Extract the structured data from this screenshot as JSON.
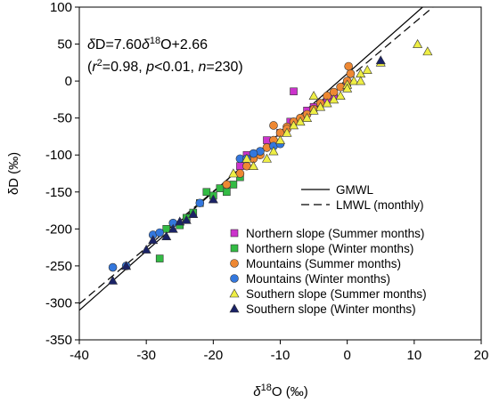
{
  "chart_data": {
    "type": "scatter",
    "annotation": {
      "line1": [
        "δ",
        "D=7.60",
        "δ",
        "18",
        "O+2.66"
      ],
      "line2": [
        "(",
        "r",
        "2",
        "=0.98, ",
        "p",
        "<0.01, ",
        "n",
        "=230)"
      ]
    },
    "xlabel": [
      "δ",
      "18",
      "O (‰)"
    ],
    "ylabel": "δD (‰)",
    "xlim": [
      -40,
      20
    ],
    "ylim": [
      -350,
      100
    ],
    "xticks": [
      -40,
      -30,
      -20,
      -10,
      0,
      10,
      20
    ],
    "yticks": [
      -350,
      -300,
      -250,
      -200,
      -150,
      -100,
      -50,
      0,
      50,
      100
    ],
    "lines": [
      {
        "name": "GMWL",
        "color": "#000000",
        "dash": "solid",
        "x": [
          -40,
          11.25
        ],
        "values": [
          -310,
          100
        ]
      },
      {
        "name": "LMWL (monthly)",
        "color": "#000000",
        "dash": "dashed",
        "x": [
          -40,
          12.8
        ],
        "values": [
          -301.3,
          100
        ]
      }
    ],
    "series": [
      {
        "name": "Northern slope (Summer months)",
        "color": "#cc33cc",
        "marker": "square",
        "x": [
          -8,
          -6,
          -4,
          -2,
          0,
          -12,
          -15,
          -16,
          -8.5,
          -10,
          -3,
          -5
        ],
        "values": [
          -14,
          -40,
          -30,
          -20,
          -5,
          -80,
          -100,
          -115,
          -55,
          -70,
          -25,
          -35
        ]
      },
      {
        "name": "Northern slope (Winter months)",
        "color": "#33bb44",
        "marker": "square",
        "x": [
          -28,
          -27,
          -25,
          -23,
          -21,
          -22,
          -20,
          -18,
          -17,
          -16,
          -24,
          -19
        ],
        "values": [
          -240,
          -200,
          -195,
          -178,
          -150,
          -165,
          -155,
          -150,
          -140,
          -130,
          -185,
          -145
        ]
      },
      {
        "name": "Mountains (Summer months)",
        "color": "#ee8833",
        "marker": "circle",
        "x": [
          -18,
          -16,
          -15,
          -14,
          -13,
          -12,
          -11,
          -10,
          -9,
          -8,
          -7,
          -6,
          -5,
          -4,
          -3,
          -2,
          -1,
          0,
          0.5,
          0.2,
          -11,
          -9
        ],
        "values": [
          -140,
          -125,
          -115,
          -105,
          -100,
          -90,
          -80,
          -70,
          -62,
          -55,
          -50,
          -45,
          -38,
          -30,
          -20,
          -15,
          -8,
          0,
          10,
          20,
          -60,
          -65
        ]
      },
      {
        "name": "Mountains (Winter months)",
        "color": "#3377dd",
        "marker": "circle",
        "x": [
          -35,
          -33,
          -29,
          -28,
          -26,
          -22,
          -16,
          -15,
          -13,
          -11,
          -10,
          -14
        ],
        "values": [
          -252,
          -250,
          -208,
          -205,
          -192,
          -165,
          -105,
          -105,
          -95,
          -88,
          -85,
          -98
        ]
      },
      {
        "name": "Southern slope (Summer months)",
        "color": "#eeee44",
        "marker": "triangle",
        "x": [
          10.5,
          12,
          3,
          2,
          1,
          0,
          -1,
          -2,
          -3,
          -5,
          -6,
          -7,
          -8,
          -9,
          -10,
          -11,
          -12,
          -15,
          -17,
          -5,
          0,
          5,
          -14,
          -4,
          2
        ],
        "values": [
          50,
          40,
          15,
          10,
          0,
          -5,
          -20,
          -25,
          -30,
          -40,
          -50,
          -55,
          -60,
          -70,
          -80,
          -95,
          -105,
          -105,
          -125,
          -20,
          -10,
          25,
          -115,
          -35,
          0
        ]
      },
      {
        "name": "Southern slope (Winter months)",
        "color": "#1a2266",
        "marker": "triangle",
        "x": [
          -35,
          -33,
          -30,
          -29,
          -26,
          -25,
          -24,
          -23,
          -20,
          5,
          -27
        ],
        "values": [
          -270,
          -250,
          -228,
          -215,
          -200,
          -190,
          -188,
          -180,
          -160,
          28,
          -210
        ]
      }
    ]
  }
}
